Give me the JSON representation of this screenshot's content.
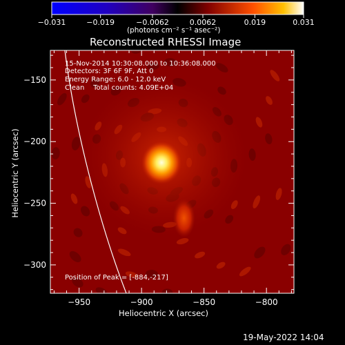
{
  "chart_data": {
    "type": "heatmap",
    "title": "Reconstructed RHESSI Image",
    "xlabel": "Heliocentric X (arcsec)",
    "ylabel": "Heliocentric Y (arcsec)",
    "xlim": [
      -973,
      -778
    ],
    "ylim": [
      -323,
      -126
    ],
    "x_ticks": [
      -950,
      -900,
      -850,
      -800
    ],
    "y_ticks": [
      -150,
      -200,
      -250,
      -300
    ],
    "x_tick_labels": [
      "−950",
      "−900",
      "−850",
      "−800"
    ],
    "y_tick_labels": [
      "−150",
      "−200",
      "−250",
      "−300"
    ],
    "colorbar": {
      "range": [
        -0.031,
        0.031
      ],
      "ticks": [
        -0.031,
        -0.019,
        -0.0062,
        0.0062,
        0.019,
        0.031
      ],
      "tick_labels": [
        "−0.031",
        "−0.019",
        "−0.0062",
        "0.0062",
        "0.019",
        "0.031"
      ],
      "unit_label": "(photons cm⁻² s⁻¹ asec⁻²)"
    },
    "peak": {
      "x": -884,
      "y": -217
    },
    "secondary_source": {
      "x": -866,
      "y": -262
    },
    "annotations": [
      "15-Nov-2014 10:30:08.000 to 10:36:08.000",
      "Detectors: 3F 6F 9F, Att 0",
      "Energy Range: 6.0 - 12.0 keV",
      "Clean    Total counts: 4.09E+04"
    ],
    "peak_label": "Position of Peak = [-884,-217]",
    "limb_curve": true
  },
  "footer": {
    "date": "19-May-2022 14:04"
  },
  "colors": {
    "background": "#000000",
    "text": "#ffffff",
    "image_base": "#8a0000"
  }
}
